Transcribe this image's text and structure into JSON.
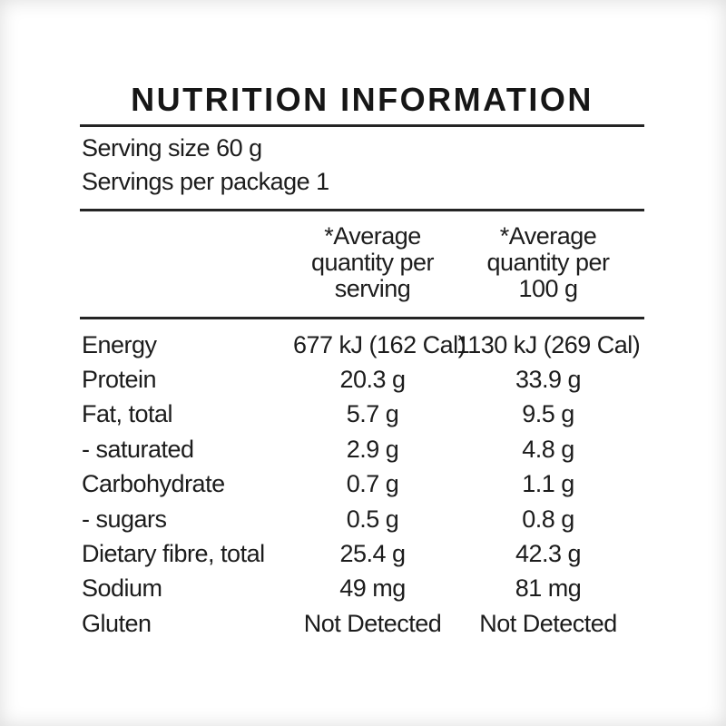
{
  "panel": {
    "title": "NUTRITION INFORMATION",
    "serving_size": "Serving size 60 g",
    "servings_per_package": "Servings per package 1",
    "columns": [
      {
        "heading": "*Average quantity per serving"
      },
      {
        "heading": "*Average quantity per 100 g"
      }
    ],
    "rows": [
      {
        "nutrient": "Energy",
        "per_serving": "677 kJ (162 Cal)",
        "per_100g": "1130 kJ (269 Cal)"
      },
      {
        "nutrient": "Protein",
        "per_serving": "20.3 g",
        "per_100g": "33.9 g"
      },
      {
        "nutrient": "Fat, total",
        "per_serving": "5.7 g",
        "per_100g": "9.5 g"
      },
      {
        "nutrient": "- saturated",
        "per_serving": "2.9 g",
        "per_100g": "4.8 g"
      },
      {
        "nutrient": "Carbohydrate",
        "per_serving": "0.7 g",
        "per_100g": "1.1 g"
      },
      {
        "nutrient": "- sugars",
        "per_serving": "0.5 g",
        "per_100g": "0.8 g"
      },
      {
        "nutrient": "Dietary fibre, total",
        "per_serving": "25.4 g",
        "per_100g": "42.3 g"
      },
      {
        "nutrient": "Sodium",
        "per_serving": "49 mg",
        "per_100g": "81 mg"
      },
      {
        "nutrient": "Gluten",
        "per_serving": "Not Detected",
        "per_100g": "Not Detected"
      }
    ],
    "colors": {
      "text": "#1c1c1c",
      "rule": "#242424",
      "background": "#ffffff"
    }
  }
}
